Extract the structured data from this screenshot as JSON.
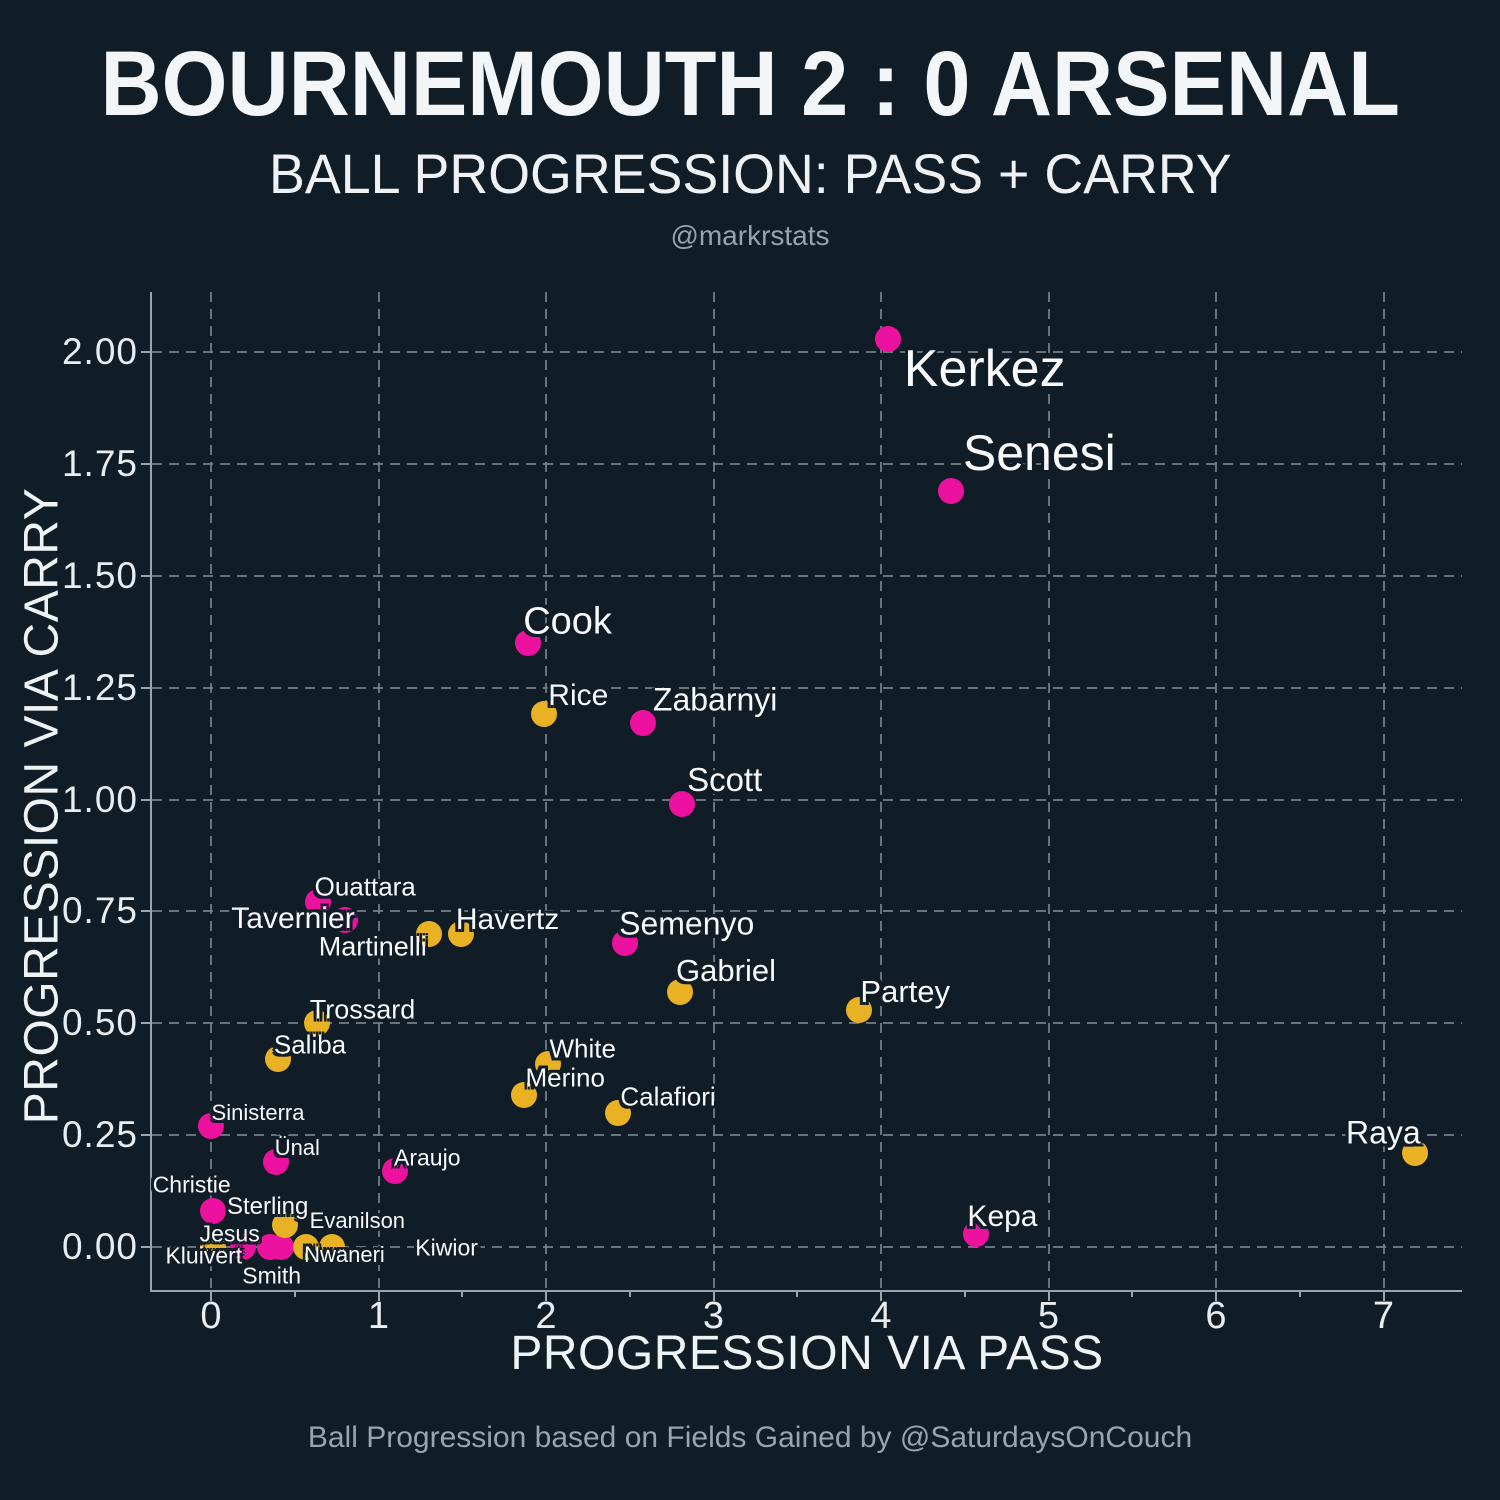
{
  "header": {
    "title": "BOURNEMOUTH 2 : 0 ARSENAL",
    "subtitle": "BALL PROGRESSION: PASS + CARRY",
    "credit": "@markrstats"
  },
  "footer": {
    "text": "Ball Progression based on Fields Gained by @SaturdaysOnCouch"
  },
  "style": {
    "background": "#101c26",
    "bournemouth_color": "#ec129f",
    "arsenal_color": "#e8b224",
    "text_color": "#f3f6f8",
    "muted_text_color": "#98a3ad",
    "grid_color": "#76838e",
    "spine_color": "#9aa6af"
  },
  "chart_data": {
    "type": "scatter",
    "title": "BOURNEMOUTH 2 : 0 ARSENAL",
    "subtitle": "BALL PROGRESSION: PASS + CARRY",
    "xlabel": "PROGRESSION VIA PASS",
    "ylabel": "PROGRESSION VIA CARRY",
    "xlim": [
      -0.35,
      7.47
    ],
    "ylim": [
      -0.1,
      2.13
    ],
    "grid": "dashed",
    "legend": "none",
    "x_ticks": [
      {
        "value": 0,
        "label": "0"
      },
      {
        "value": 1,
        "label": "1"
      },
      {
        "value": 2,
        "label": "2"
      },
      {
        "value": 3,
        "label": "3"
      },
      {
        "value": 4,
        "label": "4"
      },
      {
        "value": 5,
        "label": "5"
      },
      {
        "value": 6,
        "label": "6"
      },
      {
        "value": 7,
        "label": "7"
      }
    ],
    "x_minor_ticks": [
      0.5,
      1.5,
      2.5,
      3.5,
      4.5,
      5.5,
      6.5
    ],
    "y_ticks": [
      {
        "value": 0.0,
        "label": "0.00"
      },
      {
        "value": 0.25,
        "label": "0.25"
      },
      {
        "value": 0.5,
        "label": "0.50"
      },
      {
        "value": 0.75,
        "label": "0.75"
      },
      {
        "value": 1.0,
        "label": "1.00"
      },
      {
        "value": 1.25,
        "label": "1.25"
      },
      {
        "value": 1.5,
        "label": "1.50"
      },
      {
        "value": 1.75,
        "label": "1.75"
      },
      {
        "value": 2.0,
        "label": "2.00"
      }
    ],
    "series": [
      {
        "name": "Bournemouth",
        "color": "#ec129f",
        "points": [
          {
            "label": "Kerkez",
            "x": 4.04,
            "y": 2.03,
            "label_size": 52,
            "label_dx": 97,
            "label_dy": 30
          },
          {
            "label": "Senesi",
            "x": 4.42,
            "y": 1.69,
            "label_size": 50,
            "label_dx": 88,
            "label_dy": -38
          },
          {
            "label": "Cook",
            "x": 1.89,
            "y": 1.35,
            "label_size": 38,
            "label_dx": 40,
            "label_dy": -21
          },
          {
            "label": "Zabarnyi",
            "x": 2.58,
            "y": 1.17,
            "label_size": 32,
            "label_dx": 72,
            "label_dy": -23
          },
          {
            "label": "Scott",
            "x": 2.81,
            "y": 0.99,
            "label_size": 33,
            "label_dx": 43,
            "label_dy": -24
          },
          {
            "label": "Ouattara",
            "x": 0.64,
            "y": 0.77,
            "label_size": 26,
            "label_dx": 47,
            "label_dy": -15
          },
          {
            "label": "Tavernier",
            "x": 0.8,
            "y": 0.73,
            "label_size": 30,
            "label_dx": -52,
            "label_dy": -1
          },
          {
            "label": "Semenyo",
            "x": 2.47,
            "y": 0.68,
            "label_size": 32,
            "label_dx": 62,
            "label_dy": -19
          },
          {
            "label": "Sinisterra",
            "x": 0.0,
            "y": 0.27,
            "label_size": 22,
            "label_dx": 47,
            "label_dy": -13
          },
          {
            "label": "Ünal",
            "x": 0.39,
            "y": 0.19,
            "label_size": 22,
            "label_dx": 21,
            "label_dy": -14
          },
          {
            "label": "Araujo",
            "x": 1.1,
            "y": 0.17,
            "label_size": 23,
            "label_dx": 32,
            "label_dy": -13
          },
          {
            "label": "Christie",
            "x": 0.01,
            "y": 0.08,
            "label_size": 23,
            "label_dx": -21,
            "label_dy": -26
          },
          {
            "label": "Kluivert",
            "x": 0.19,
            "y": 0.0,
            "label_size": 23,
            "label_dx": -39,
            "label_dy": 9
          },
          {
            "label": "Smith",
            "x": 0.35,
            "y": 0.0,
            "label_size": 23,
            "label_dx": 2,
            "label_dy": 29
          },
          {
            "label": "Evanilson",
            "x": 0.42,
            "y": 0.0,
            "label_size": 22,
            "label_dx": 76,
            "label_dy": -26
          },
          {
            "label": "Kepa",
            "x": 4.57,
            "y": 0.03,
            "label_size": 30,
            "label_dx": 26,
            "label_dy": -17
          }
        ]
      },
      {
        "name": "Arsenal",
        "color": "#e8b224",
        "points": [
          {
            "label": "Rice",
            "x": 1.99,
            "y": 1.19,
            "label_size": 30,
            "label_dx": 34,
            "label_dy": -18
          },
          {
            "label": "Havertz",
            "x": 1.49,
            "y": 0.7,
            "label_size": 30,
            "label_dx": 47,
            "label_dy": -14
          },
          {
            "label": "Martinelli",
            "x": 1.3,
            "y": 0.7,
            "label_size": 27,
            "label_dx": -56,
            "label_dy": 13
          },
          {
            "label": "Gabriel",
            "x": 2.8,
            "y": 0.57,
            "label_size": 31,
            "label_dx": 46,
            "label_dy": -21
          },
          {
            "label": "Partey",
            "x": 3.87,
            "y": 0.53,
            "label_size": 31,
            "label_dx": 46,
            "label_dy": -18
          },
          {
            "label": "Trossard",
            "x": 0.63,
            "y": 0.5,
            "label_size": 27,
            "label_dx": 46,
            "label_dy": -13
          },
          {
            "label": "Saliba",
            "x": 0.4,
            "y": 0.42,
            "label_size": 26,
            "label_dx": 32,
            "label_dy": -14
          },
          {
            "label": "White",
            "x": 2.01,
            "y": 0.41,
            "label_size": 26,
            "label_dx": 35,
            "label_dy": -15
          },
          {
            "label": "Merino",
            "x": 1.87,
            "y": 0.34,
            "label_size": 26,
            "label_dx": 41,
            "label_dy": -17
          },
          {
            "label": "Calafiori",
            "x": 2.43,
            "y": 0.3,
            "label_size": 26,
            "label_dx": 50,
            "label_dy": -16
          },
          {
            "label": "Sterling",
            "x": 0.44,
            "y": 0.05,
            "label_size": 24,
            "label_dx": -17,
            "label_dy": -18
          },
          {
            "label": "Jesus",
            "x": 0.01,
            "y": 0.0,
            "label_size": 23,
            "label_dx": 17,
            "label_dy": -13
          },
          {
            "label": "Nwaneri",
            "x": 0.57,
            "y": 0.0,
            "label_size": 22,
            "label_dx": 38,
            "label_dy": 8
          },
          {
            "label": "Kiwior",
            "x": 0.72,
            "y": 0.0,
            "label_size": 23,
            "label_dx": 115,
            "label_dy": 1
          },
          {
            "label": "Raya",
            "x": 7.19,
            "y": 0.21,
            "label_size": 32,
            "label_dx": -32,
            "label_dy": -20
          }
        ]
      }
    ]
  }
}
